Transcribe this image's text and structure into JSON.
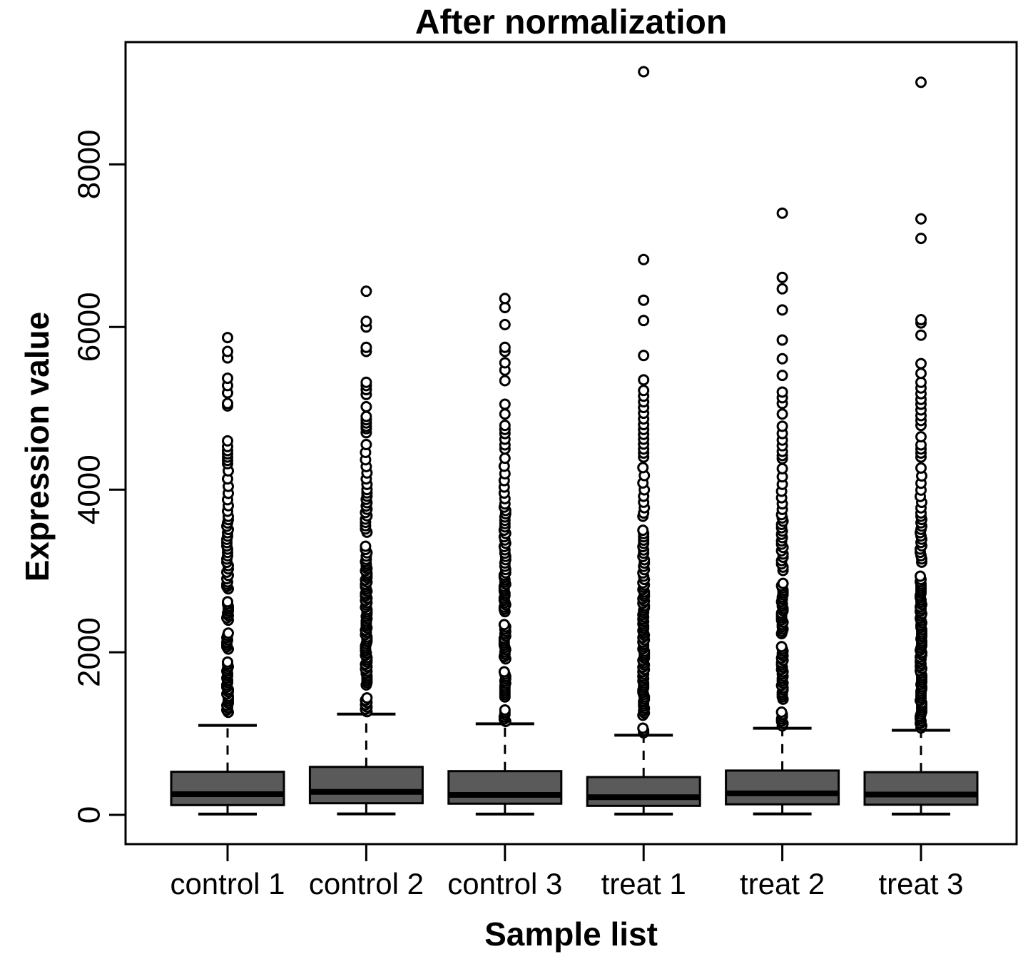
{
  "chart_data": {
    "type": "boxplot",
    "title": "After normalization",
    "xlabel": "Sample list",
    "ylabel": "Expression value",
    "yticks": [
      0,
      2000,
      4000,
      6000,
      8000
    ],
    "ylim": [
      -360,
      9500
    ],
    "grid": false,
    "legend": "none",
    "box_fill_color": "#5a5a5a",
    "line_color": "#000000",
    "background_color": "#ffffff",
    "categories": [
      "control 1",
      "control 2",
      "control 3",
      "treat 1",
      "treat 2",
      "treat 3"
    ],
    "series": [
      {
        "name": "control 1",
        "min": 10,
        "q1": 120,
        "median": 255,
        "q3": 530,
        "whisker_high": 1100,
        "dense_outlier_band": [
          1130,
          4280
        ],
        "outliers": [
          4320,
          4360,
          4400,
          4440,
          4480,
          4530,
          4600,
          5030,
          5060,
          5190,
          5280,
          5370,
          5620,
          5700,
          5870
        ]
      },
      {
        "name": "control 2",
        "min": 12,
        "q1": 143,
        "median": 283,
        "q3": 590,
        "whisker_high": 1240,
        "dense_outlier_band": [
          1270,
          4650
        ],
        "outliers": [
          4700,
          4750,
          4780,
          4820,
          4860,
          4900,
          5020,
          5170,
          5230,
          5280,
          5320,
          5700,
          5750,
          6000,
          6070,
          6440
        ]
      },
      {
        "name": "control 3",
        "min": 10,
        "q1": 138,
        "median": 246,
        "q3": 538,
        "whisker_high": 1120,
        "dense_outlier_band": [
          1150,
          4450
        ],
        "outliers": [
          4500,
          4550,
          4620,
          4690,
          4740,
          4790,
          4930,
          5050,
          5340,
          5470,
          5560,
          5700,
          5750,
          6030,
          6240,
          6350
        ]
      },
      {
        "name": "treat 1",
        "min": 10,
        "q1": 111,
        "median": 217,
        "q3": 465,
        "whisker_high": 980,
        "dense_outlier_band": [
          1010,
          4350
        ],
        "outliers": [
          4400,
          4450,
          4500,
          4560,
          4620,
          4680,
          4740,
          4800,
          4870,
          4940,
          5010,
          5080,
          5150,
          5220,
          5350,
          5650,
          6080,
          6330,
          6830,
          9140
        ]
      },
      {
        "name": "treat 2",
        "min": 12,
        "q1": 130,
        "median": 264,
        "q3": 545,
        "whisker_high": 1065,
        "dense_outlier_band": [
          1095,
          4300
        ],
        "outliers": [
          4380,
          4420,
          4470,
          4540,
          4610,
          4690,
          4780,
          4930,
          5060,
          5130,
          5200,
          5405,
          5610,
          5840,
          6210,
          6470,
          6610,
          7400
        ]
      },
      {
        "name": "treat 3",
        "min": 10,
        "q1": 125,
        "median": 250,
        "q3": 525,
        "whisker_high": 1040,
        "dense_outlier_band": [
          1070,
          4350
        ],
        "outliers": [
          4400,
          4450,
          4500,
          4550,
          4650,
          4790,
          4850,
          4910,
          4980,
          5050,
          5110,
          5180,
          5250,
          5320,
          5430,
          5550,
          5900,
          6050,
          6090,
          7090,
          7330,
          9010
        ]
      }
    ]
  }
}
